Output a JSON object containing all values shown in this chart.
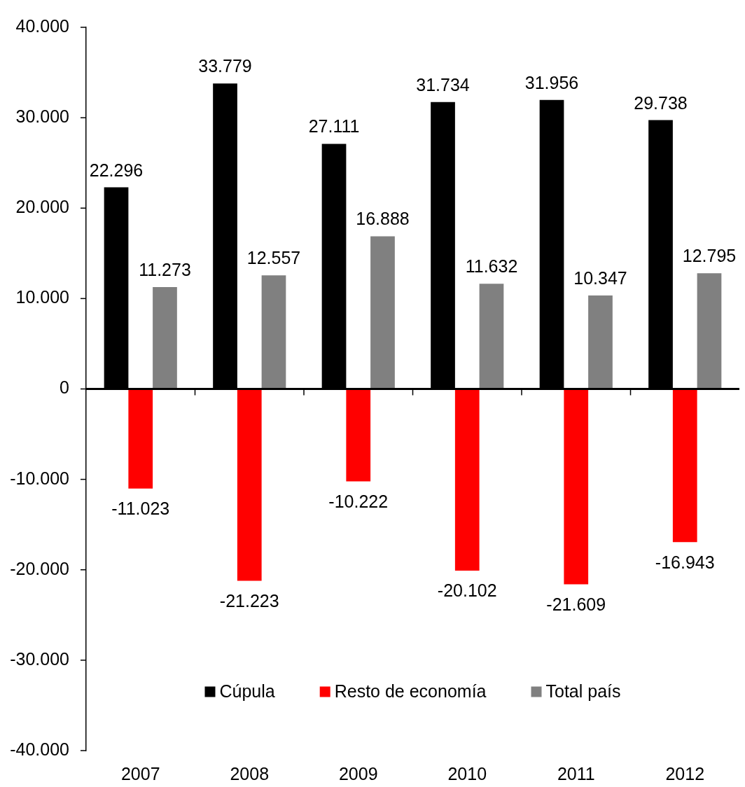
{
  "chart_data": {
    "type": "bar",
    "categories": [
      "2007",
      "2008",
      "2009",
      "2010",
      "2011",
      "2012"
    ],
    "series": [
      {
        "name": "Cúpula",
        "color": "#000000",
        "values": [
          22296,
          33779,
          27111,
          31734,
          31956,
          29738
        ],
        "value_labels": [
          "22.296",
          "33.779",
          "27.111",
          "31.734",
          "31.956",
          "29.738"
        ]
      },
      {
        "name": "Resto de economía",
        "color": "#ff0000",
        "values": [
          -11023,
          -21223,
          -10222,
          -20102,
          -21609,
          -16943
        ],
        "value_labels": [
          "-11.023",
          "-21.223",
          "-10.222",
          "-20.102",
          "-21.609",
          "-16.943"
        ]
      },
      {
        "name": "Total país",
        "color": "#808080",
        "values": [
          11273,
          12557,
          16888,
          11632,
          10347,
          12795
        ],
        "value_labels": [
          "11.273",
          "12.557",
          "16.888",
          "11.632",
          "10.347",
          "12.795"
        ]
      }
    ],
    "ylim": [
      -40000,
      40000
    ],
    "yticks": [
      {
        "value": -40000,
        "label": "-40.000"
      },
      {
        "value": -30000,
        "label": "-30.000"
      },
      {
        "value": -20000,
        "label": "-20.000"
      },
      {
        "value": -10000,
        "label": "-10.000"
      },
      0,
      {
        "value": 10000,
        "label": "10.000"
      },
      {
        "value": 20000,
        "label": "20.000"
      },
      {
        "value": 30000,
        "label": "30.000"
      },
      {
        "value": 40000,
        "label": "40.000"
      }
    ],
    "ref_lines": [
      {
        "axis": "y",
        "value": 0,
        "color": "#000000"
      }
    ],
    "grid": false,
    "legend": "bottom"
  }
}
